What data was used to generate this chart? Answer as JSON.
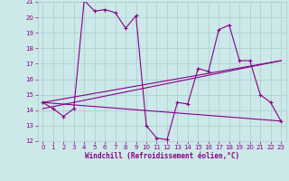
{
  "xlabel": "Windchill (Refroidissement éolien,°C)",
  "background_color": "#cce8e8",
  "line_color": "#880088",
  "grid_color": "#aacccc",
  "xlim": [
    -0.5,
    23.5
  ],
  "ylim": [
    12,
    21
  ],
  "xticks": [
    0,
    1,
    2,
    3,
    4,
    5,
    6,
    7,
    8,
    9,
    10,
    11,
    12,
    13,
    14,
    15,
    16,
    17,
    18,
    19,
    20,
    21,
    22,
    23
  ],
  "yticks": [
    12,
    13,
    14,
    15,
    16,
    17,
    18,
    19,
    20,
    21
  ],
  "series1_x": [
    0,
    1,
    2,
    3,
    4,
    5,
    6,
    7,
    8,
    9,
    10,
    11,
    12,
    13,
    14,
    15,
    16,
    17,
    18,
    19,
    20,
    21,
    22,
    23
  ],
  "series1_y": [
    14.5,
    14.1,
    13.6,
    14.1,
    21.1,
    20.4,
    20.5,
    20.3,
    19.3,
    20.1,
    13.0,
    12.2,
    12.1,
    14.5,
    14.4,
    16.7,
    16.5,
    19.2,
    19.5,
    17.2,
    17.2,
    15.0,
    14.5,
    13.3
  ],
  "series2_x": [
    0,
    23
  ],
  "series2_y": [
    14.5,
    13.3
  ],
  "series3_x": [
    0,
    23
  ],
  "series3_y": [
    14.5,
    17.2
  ],
  "series4_x": [
    0,
    23
  ],
  "series4_y": [
    14.1,
    17.2
  ],
  "tick_fontsize": 5.0,
  "xlabel_fontsize": 5.5,
  "linewidth": 0.8,
  "marker_size": 2.0
}
